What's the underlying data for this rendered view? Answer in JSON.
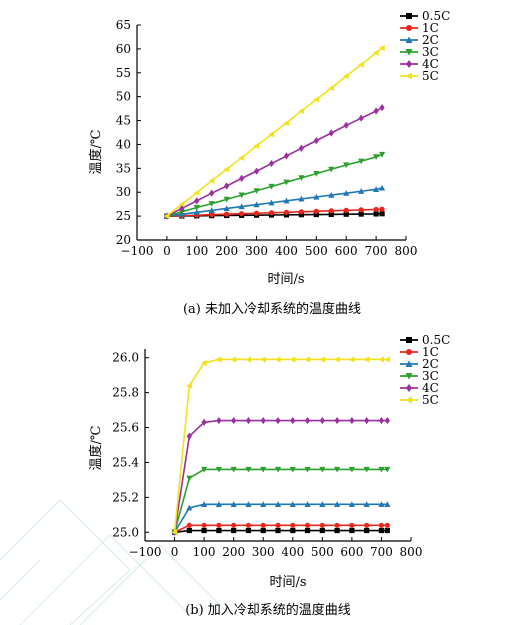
{
  "chart_data": [
    {
      "type": "line",
      "caption": "(a) 未加入冷却系统的温度曲线",
      "xlabel": "时间/s",
      "ylabel": "温度/℃",
      "xlim": [
        -100,
        800
      ],
      "ylim": [
        20,
        65
      ],
      "xticks": [
        -100,
        0,
        100,
        200,
        300,
        400,
        500,
        600,
        700,
        800
      ],
      "yticks": [
        20,
        25,
        30,
        35,
        40,
        45,
        50,
        55,
        60,
        65
      ],
      "x": [
        0,
        50,
        100,
        150,
        200,
        250,
        300,
        350,
        400,
        450,
        500,
        550,
        600,
        650,
        700,
        720
      ],
      "legend": "top-right",
      "series": [
        {
          "name": "0.5C",
          "color": "#000000",
          "marker": "square",
          "values": [
            25.0,
            25.03,
            25.06,
            25.1,
            25.13,
            25.16,
            25.2,
            25.23,
            25.26,
            25.3,
            25.33,
            25.36,
            25.4,
            25.43,
            25.46,
            25.5
          ]
        },
        {
          "name": "1C",
          "color": "#e8261d",
          "marker": "circle",
          "values": [
            25.0,
            25.1,
            25.2,
            25.3,
            25.4,
            25.5,
            25.6,
            25.7,
            25.8,
            25.9,
            26.0,
            26.1,
            26.2,
            26.3,
            26.4,
            26.45
          ]
        },
        {
          "name": "2C",
          "color": "#1f77b4",
          "marker": "triangle-up",
          "values": [
            25.0,
            25.4,
            25.8,
            26.2,
            26.6,
            27.0,
            27.4,
            27.8,
            28.2,
            28.6,
            29.0,
            29.4,
            29.8,
            30.2,
            30.6,
            30.9
          ]
        },
        {
          "name": "3C",
          "color": "#2ca02c",
          "marker": "triangle-down",
          "values": [
            25.0,
            25.9,
            26.8,
            27.6,
            28.5,
            29.4,
            30.3,
            31.2,
            32.1,
            33.0,
            33.9,
            34.8,
            35.7,
            36.5,
            37.4,
            37.9
          ]
        },
        {
          "name": "4C",
          "color": "#9b2f9e",
          "marker": "diamond",
          "values": [
            25.0,
            26.6,
            28.2,
            29.8,
            31.3,
            32.9,
            34.4,
            36.0,
            37.6,
            39.2,
            40.8,
            42.4,
            44.0,
            45.5,
            47.0,
            47.7
          ]
        },
        {
          "name": "5C",
          "color": "#f2e21a",
          "marker": "triangle-left",
          "values": [
            25.0,
            27.5,
            29.9,
            32.4,
            34.8,
            37.2,
            39.7,
            42.1,
            44.5,
            47.0,
            49.4,
            51.8,
            54.3,
            56.7,
            59.2,
            60.2
          ]
        }
      ]
    },
    {
      "type": "line",
      "caption": "(b) 加入冷却系统的温度曲线",
      "xlabel": "时间/s",
      "ylabel": "温度/℃",
      "xlim": [
        -100,
        800
      ],
      "ylim": [
        24.95,
        26.05
      ],
      "xticks": [
        -100,
        0,
        100,
        200,
        300,
        400,
        500,
        600,
        700,
        800
      ],
      "yticks": [
        25.0,
        25.2,
        25.4,
        25.6,
        25.8,
        26.0
      ],
      "ytick_labels": [
        "25.0",
        "25.2",
        "25.4",
        "25.6",
        "25.8",
        "26.0"
      ],
      "x": [
        0,
        50,
        100,
        150,
        200,
        250,
        300,
        350,
        400,
        450,
        500,
        550,
        600,
        650,
        700,
        720
      ],
      "legend": "top-right",
      "series": [
        {
          "name": "0.5C",
          "color": "#000000",
          "marker": "square",
          "values": [
            25.0,
            25.01,
            25.01,
            25.01,
            25.01,
            25.01,
            25.01,
            25.01,
            25.01,
            25.01,
            25.01,
            25.01,
            25.01,
            25.01,
            25.01,
            25.01
          ]
        },
        {
          "name": "1C",
          "color": "#e8261d",
          "marker": "circle",
          "values": [
            25.0,
            25.04,
            25.04,
            25.04,
            25.04,
            25.04,
            25.04,
            25.04,
            25.04,
            25.04,
            25.04,
            25.04,
            25.04,
            25.04,
            25.04,
            25.04
          ]
        },
        {
          "name": "2C",
          "color": "#1f77b4",
          "marker": "triangle-up",
          "values": [
            25.0,
            25.14,
            25.16,
            25.16,
            25.16,
            25.16,
            25.16,
            25.16,
            25.16,
            25.16,
            25.16,
            25.16,
            25.16,
            25.16,
            25.16,
            25.16
          ]
        },
        {
          "name": "3C",
          "color": "#2ca02c",
          "marker": "triangle-down",
          "values": [
            25.0,
            25.31,
            25.36,
            25.36,
            25.36,
            25.36,
            25.36,
            25.36,
            25.36,
            25.36,
            25.36,
            25.36,
            25.36,
            25.36,
            25.36,
            25.36
          ]
        },
        {
          "name": "4C",
          "color": "#9b2f9e",
          "marker": "diamond",
          "values": [
            25.0,
            25.55,
            25.63,
            25.64,
            25.64,
            25.64,
            25.64,
            25.64,
            25.64,
            25.64,
            25.64,
            25.64,
            25.64,
            25.64,
            25.64,
            25.64
          ]
        },
        {
          "name": "5C",
          "color": "#f2e21a",
          "marker": "triangle-left",
          "values": [
            25.0,
            25.84,
            25.97,
            25.99,
            25.99,
            25.99,
            25.99,
            25.99,
            25.99,
            25.99,
            25.99,
            25.99,
            25.99,
            25.99,
            25.99,
            25.99
          ]
        }
      ]
    }
  ]
}
